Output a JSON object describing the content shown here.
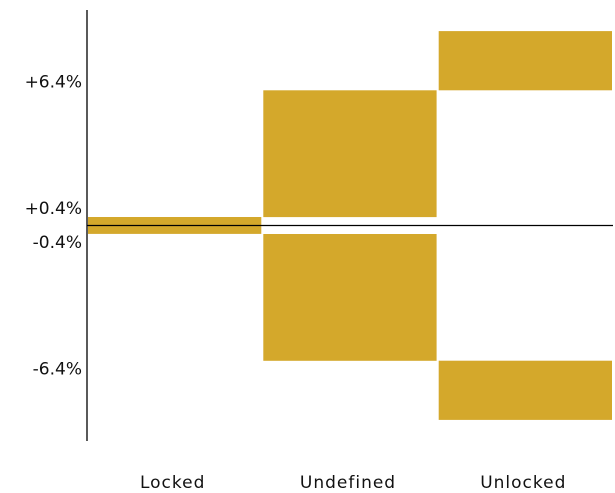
{
  "chart_data": {
    "type": "bar",
    "title": "",
    "xlabel": "",
    "ylabel": "",
    "categories": [
      "Locked",
      "Undefined",
      "Unlocked"
    ],
    "bars": [
      {
        "category": "Locked",
        "low": -0.4,
        "high": 0.4
      },
      {
        "category": "Undefined",
        "low": 0.4,
        "high": 6.4
      },
      {
        "category": "Undefined",
        "low": -6.4,
        "high": -0.4
      },
      {
        "category": "Unlocked",
        "low": 6.4,
        "high": 9.2
      },
      {
        "category": "Unlocked",
        "low": -9.2,
        "high": -6.4
      }
    ],
    "y_ticks": [
      {
        "value": 6.4,
        "label": "+6.4%"
      },
      {
        "value": 0.4,
        "label": "+0.4%"
      },
      {
        "value": -0.4,
        "label": "-0.4%"
      },
      {
        "value": -6.4,
        "label": "-6.4%"
      }
    ],
    "ylim": [
      -10.2,
      10.2
    ],
    "bar_color": "#d4a82b",
    "grid": false,
    "legend": "none"
  }
}
